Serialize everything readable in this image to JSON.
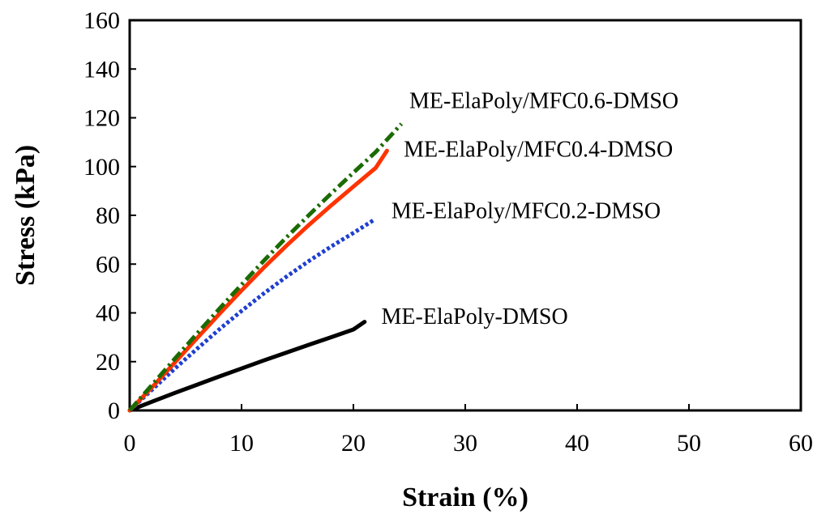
{
  "chart_data": {
    "type": "line",
    "title": "",
    "xlabel": "Strain (%)",
    "ylabel": "Stress (kPa)",
    "xlim": [
      0,
      60
    ],
    "ylim": [
      0,
      160
    ],
    "xticks": [
      0,
      10,
      20,
      30,
      40,
      50,
      60
    ],
    "yticks": [
      0,
      20,
      40,
      60,
      80,
      100,
      120,
      140,
      160
    ],
    "grid": false,
    "legend": "inline labels at line ends",
    "series": [
      {
        "name": "ME-ElaPoly-DMSO",
        "color": "#000000",
        "style": "solid",
        "points": [
          [
            0,
            0
          ],
          [
            2,
            3.6
          ],
          [
            4,
            7.1
          ],
          [
            6,
            10.5
          ],
          [
            8,
            13.9
          ],
          [
            10,
            17.2
          ],
          [
            12,
            20.5
          ],
          [
            14,
            23.7
          ],
          [
            16,
            26.9
          ],
          [
            18,
            30.0
          ],
          [
            20,
            33.2
          ],
          [
            21,
            36.3
          ]
        ]
      },
      {
        "name": "ME-ElaPoly/MFC0.2-DMSO",
        "color": "#1f3fd0",
        "style": "dotted",
        "points": [
          [
            0,
            0
          ],
          [
            2,
            8.5
          ],
          [
            4,
            17
          ],
          [
            6,
            25.2
          ],
          [
            8,
            33.2
          ],
          [
            10,
            40.8
          ],
          [
            12,
            48.0
          ],
          [
            14,
            54.8
          ],
          [
            16,
            61.2
          ],
          [
            18,
            67.2
          ],
          [
            20,
            72.8
          ],
          [
            21.8,
            78
          ]
        ]
      },
      {
        "name": "ME-ElaPoly/MFC0.4-DMSO",
        "color": "#ff3300",
        "style": "solid",
        "points": [
          [
            0,
            0
          ],
          [
            2,
            9.5
          ],
          [
            4,
            19.5
          ],
          [
            6,
            29.5
          ],
          [
            8,
            39.5
          ],
          [
            10,
            49.2
          ],
          [
            12,
            58.6
          ],
          [
            14,
            67.5
          ],
          [
            16,
            76.0
          ],
          [
            18,
            84.0
          ],
          [
            20,
            91.8
          ],
          [
            22,
            99.5
          ],
          [
            23,
            106.5
          ]
        ]
      },
      {
        "name": "ME-ElaPoly/MFC0.6-DMSO",
        "color": "#1a6b00",
        "style": "dash-dot",
        "points": [
          [
            0,
            0
          ],
          [
            2,
            10.5
          ],
          [
            4,
            21.0
          ],
          [
            6,
            31.4
          ],
          [
            8,
            41.6
          ],
          [
            10,
            51.6
          ],
          [
            12,
            61.4
          ],
          [
            14,
            70.9
          ],
          [
            16,
            80.0
          ],
          [
            18,
            88.9
          ],
          [
            20,
            97.5
          ],
          [
            22,
            106.0
          ],
          [
            24.3,
            117.5
          ]
        ]
      }
    ],
    "labels": [
      {
        "text": "ME-ElaPoly/MFC0.6-DMSO",
        "x": 25,
        "y": 124
      },
      {
        "text": "ME-ElaPoly/MFC0.4-DMSO",
        "x": 24.5,
        "y": 104
      },
      {
        "text": "ME-ElaPoly/MFC0.2-DMSO",
        "x": 23.4,
        "y": 78.8
      },
      {
        "text": "ME-ElaPoly-DMSO",
        "x": 22.5,
        "y": 35.5
      }
    ]
  }
}
